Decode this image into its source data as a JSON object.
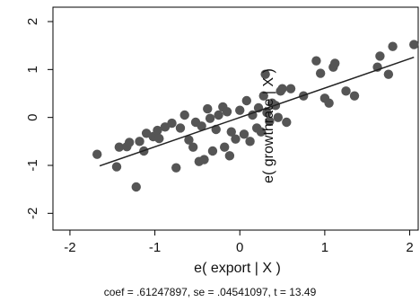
{
  "chart_data": {
    "type": "scatter",
    "xlabel": "e( export | X )",
    "ylabel": "e( growthrate | X )",
    "note": "coef = .61247897, se = .04541097, t = 13.49",
    "xlim": [
      -2.2,
      2.1
    ],
    "ylim": [
      -2.35,
      2.3
    ],
    "xticks": [
      -2,
      -1,
      0,
      1,
      2
    ],
    "yticks": [
      -2,
      -1,
      0,
      1,
      2
    ],
    "xtick_labels": [
      "-2",
      "-1",
      "0",
      "1",
      "2"
    ],
    "ytick_labels": [
      "-2",
      "-1",
      "0",
      "1",
      "2"
    ],
    "grid": false,
    "marker_color": "#555555",
    "line_color": "#222222",
    "fit_line": {
      "intercept": 0.0,
      "slope": 0.61247897,
      "x_range": [
        -1.65,
        2.05
      ]
    },
    "points": [
      {
        "x": -1.68,
        "y": -0.77
      },
      {
        "x": -1.45,
        "y": -1.03
      },
      {
        "x": -1.42,
        "y": -0.62
      },
      {
        "x": -1.33,
        "y": -0.61
      },
      {
        "x": -1.3,
        "y": -0.52
      },
      {
        "x": -1.22,
        "y": -1.45
      },
      {
        "x": -1.18,
        "y": -0.5
      },
      {
        "x": -1.13,
        "y": -0.7
      },
      {
        "x": -1.1,
        "y": -0.33
      },
      {
        "x": -1.02,
        "y": -0.4
      },
      {
        "x": -0.97,
        "y": -0.27
      },
      {
        "x": -0.95,
        "y": -0.44
      },
      {
        "x": -0.88,
        "y": -0.2
      },
      {
        "x": -0.8,
        "y": -0.12
      },
      {
        "x": -0.75,
        "y": -1.05
      },
      {
        "x": -0.7,
        "y": -0.22
      },
      {
        "x": -0.65,
        "y": 0.05
      },
      {
        "x": -0.6,
        "y": -0.47
      },
      {
        "x": -0.55,
        "y": -0.62
      },
      {
        "x": -0.52,
        "y": -0.1
      },
      {
        "x": -0.48,
        "y": -0.92
      },
      {
        "x": -0.45,
        "y": -0.18
      },
      {
        "x": -0.42,
        "y": -0.88
      },
      {
        "x": -0.38,
        "y": 0.18
      },
      {
        "x": -0.35,
        "y": -0.02
      },
      {
        "x": -0.32,
        "y": -0.7
      },
      {
        "x": -0.28,
        "y": -0.25
      },
      {
        "x": -0.25,
        "y": 0.05
      },
      {
        "x": -0.2,
        "y": 0.22
      },
      {
        "x": -0.18,
        "y": -0.62
      },
      {
        "x": -0.15,
        "y": 0.12
      },
      {
        "x": -0.12,
        "y": -0.8
      },
      {
        "x": -0.1,
        "y": -0.3
      },
      {
        "x": -0.05,
        "y": -0.45
      },
      {
        "x": 0.0,
        "y": 0.15
      },
      {
        "x": 0.05,
        "y": -0.35
      },
      {
        "x": 0.08,
        "y": 0.35
      },
      {
        "x": 0.12,
        "y": -0.5
      },
      {
        "x": 0.15,
        "y": 0.05
      },
      {
        "x": 0.2,
        "y": -0.22
      },
      {
        "x": 0.22,
        "y": 0.2
      },
      {
        "x": 0.25,
        "y": -0.3
      },
      {
        "x": 0.28,
        "y": 0.45
      },
      {
        "x": 0.3,
        "y": 0.9
      },
      {
        "x": 0.32,
        "y": 0.1
      },
      {
        "x": 0.35,
        "y": -0.08
      },
      {
        "x": 0.38,
        "y": 0.3
      },
      {
        "x": 0.42,
        "y": 0.25
      },
      {
        "x": 0.45,
        "y": 0.0
      },
      {
        "x": 0.48,
        "y": 0.55
      },
      {
        "x": 0.5,
        "y": 0.6
      },
      {
        "x": 0.55,
        "y": -0.1
      },
      {
        "x": 0.6,
        "y": 0.6
      },
      {
        "x": 0.75,
        "y": 0.45
      },
      {
        "x": 0.9,
        "y": 1.18
      },
      {
        "x": 0.95,
        "y": 0.92
      },
      {
        "x": 1.0,
        "y": 0.4
      },
      {
        "x": 1.05,
        "y": 0.3
      },
      {
        "x": 1.1,
        "y": 1.05
      },
      {
        "x": 1.12,
        "y": 1.13
      },
      {
        "x": 1.25,
        "y": 0.55
      },
      {
        "x": 1.35,
        "y": 0.45
      },
      {
        "x": 1.62,
        "y": 1.05
      },
      {
        "x": 1.65,
        "y": 1.28
      },
      {
        "x": 1.75,
        "y": 0.9
      },
      {
        "x": 1.8,
        "y": 1.48
      },
      {
        "x": 2.05,
        "y": 1.52
      }
    ]
  }
}
